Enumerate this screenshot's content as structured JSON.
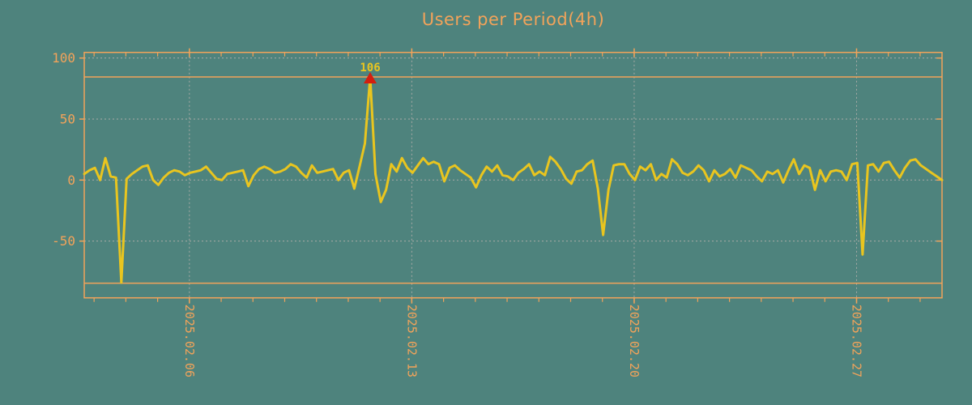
{
  "title": "Users per Period(4h)",
  "colors": {
    "background": "#4E837D",
    "accent_orange": "#F2A35A",
    "line_yellow": "#E9C51F",
    "marker_red": "#D41E0F",
    "grid_gray": "#A9ABA6"
  },
  "chart_data": {
    "type": "line",
    "title": "Users per Period(4h)",
    "series_name": "Users",
    "period_hours": 4,
    "ylim": [
      -96.5,
      104.6
    ],
    "y_ticks": [
      100,
      50,
      0,
      -50
    ],
    "grid": true,
    "legend": "none",
    "threshold_lines": [
      84.5,
      -84.5
    ],
    "clip_max": 84.5,
    "x_tick_labels": [
      "2025.02.06",
      "2025.02.13",
      "2025.02.20",
      "2025.02.27"
    ],
    "x_tick_days": [
      3.31,
      10.31,
      17.31,
      24.31
    ],
    "minor_tick_first_day": 0.31,
    "minor_tick_step_days": 1,
    "minor_tick_count": 27,
    "total_days": 27,
    "max_annotation": {
      "label": "106",
      "value": 106,
      "index": 54
    },
    "values": [
      5,
      8,
      10,
      0,
      18,
      3,
      2,
      -84,
      1,
      5,
      8,
      11,
      12,
      0,
      -4,
      2,
      6,
      8,
      7,
      4,
      6,
      7,
      8,
      11,
      6,
      1,
      0,
      5,
      6,
      7,
      8,
      -5,
      4,
      9,
      11,
      9,
      6,
      7,
      9,
      13,
      11,
      6,
      2,
      12,
      6,
      7,
      8,
      9,
      0,
      6,
      8,
      -7,
      11,
      30,
      106,
      5,
      -18,
      -8,
      13,
      7,
      18,
      10,
      6,
      12,
      18,
      13,
      15,
      13,
      -1,
      10,
      12,
      8,
      5,
      2,
      -6,
      4,
      11,
      7,
      12,
      4,
      3,
      0,
      6,
      9,
      13,
      4,
      7,
      4,
      19,
      15,
      9,
      1,
      -3,
      7,
      8,
      13,
      16,
      -7,
      -45,
      -8,
      12,
      13,
      13,
      5,
      0,
      11,
      8,
      13,
      0,
      5,
      2,
      17,
      13,
      6,
      4,
      7,
      12,
      8,
      -1,
      8,
      3,
      5,
      9,
      2,
      12,
      10,
      8,
      3,
      -1,
      7,
      5,
      8,
      -2,
      8,
      17,
      5,
      12,
      10,
      -8,
      8,
      -1,
      7,
      8,
      7,
      0,
      13,
      14,
      -61,
      12,
      13,
      7,
      14,
      15,
      8,
      2,
      10,
      16,
      17,
      12,
      9,
      6,
      3,
      0
    ]
  }
}
